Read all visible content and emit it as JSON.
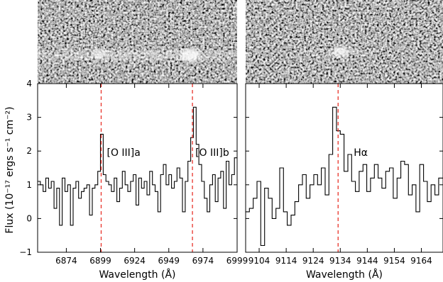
{
  "chart_data": [
    {
      "type": "line",
      "style": "step",
      "xlabel": "Wavelength (Å)",
      "ylabel": "Flux (10⁻¹⁷ ergs s⁻¹ cm⁻²)",
      "xlim": [
        6853,
        6999
      ],
      "ylim": [
        -1,
        4
      ],
      "xticks": [
        6874,
        6899,
        6924,
        6949,
        6974,
        6999
      ],
      "yticks": [
        -1,
        0,
        1,
        2,
        3,
        4
      ],
      "grid": false,
      "reference_lines": [
        {
          "x": 6899.5,
          "label": "[O III]a",
          "color": "#e8332a"
        },
        {
          "x": 6966.3,
          "label": "[O III]b",
          "color": "#e8332a"
        }
      ],
      "x": [
        6853,
        6855,
        6857,
        6859,
        6861,
        6863,
        6865,
        6867,
        6869,
        6871,
        6873,
        6875,
        6877,
        6879,
        6881,
        6883,
        6885,
        6887,
        6889,
        6891,
        6893,
        6895,
        6897,
        6899,
        6901,
        6903,
        6905,
        6907,
        6909,
        6911,
        6913,
        6915,
        6917,
        6919,
        6921,
        6923,
        6925,
        6927,
        6929,
        6931,
        6933,
        6935,
        6937,
        6939,
        6941,
        6943,
        6945,
        6947,
        6949,
        6951,
        6953,
        6955,
        6957,
        6959,
        6961,
        6963,
        6965,
        6967,
        6969,
        6971,
        6973,
        6975,
        6977,
        6979,
        6981,
        6983,
        6985,
        6987,
        6989,
        6991,
        6993,
        6995,
        6997
      ],
      "values": [
        1.1,
        1.0,
        0.8,
        1.2,
        0.9,
        1.1,
        0.3,
        0.9,
        -0.2,
        1.2,
        0.8,
        1.0,
        -0.2,
        0.9,
        1.1,
        0.6,
        0.8,
        0.9,
        1.0,
        0.1,
        0.9,
        1.0,
        1.4,
        2.5,
        1.3,
        1.1,
        1.0,
        0.8,
        1.2,
        0.5,
        0.9,
        1.4,
        1.0,
        0.8,
        1.1,
        1.3,
        0.4,
        1.2,
        0.9,
        1.1,
        0.7,
        1.4,
        1.0,
        0.8,
        0.2,
        1.3,
        1.6,
        1.0,
        1.3,
        0.9,
        1.1,
        1.5,
        1.2,
        0.2,
        1.1,
        1.7,
        2.4,
        3.3,
        2.2,
        1.6,
        1.1,
        0.6,
        0.2,
        1.0,
        1.3,
        0.5,
        1.2,
        1.4,
        0.3,
        1.7,
        1.0,
        1.3,
        1.8
      ]
    },
    {
      "type": "line",
      "style": "step",
      "xlabel": "Wavelength (Å)",
      "ylabel": "",
      "xlim": [
        9099,
        9172
      ],
      "ylim": [
        -1,
        4
      ],
      "xticks": [
        9104,
        9114,
        9124,
        9134,
        9144,
        9154,
        9164
      ],
      "yticks": [],
      "grid": false,
      "reference_lines": [
        {
          "x": 9133.2,
          "label": "Hα",
          "color": "#e8332a"
        }
      ],
      "x": [
        9099,
        9100.4,
        9101.8,
        9103.2,
        9104.6,
        9106,
        9107.4,
        9108.8,
        9110.2,
        9111.6,
        9113,
        9114.4,
        9115.8,
        9117.2,
        9118.6,
        9120,
        9121.4,
        9122.8,
        9124.2,
        9125.6,
        9127,
        9128.4,
        9129.8,
        9131.2,
        9132.6,
        9134,
        9135.4,
        9136.8,
        9138.2,
        9139.6,
        9141,
        9142.4,
        9143.8,
        9145.2,
        9146.6,
        9148,
        9149.4,
        9150.8,
        9152.2,
        9153.6,
        9155,
        9156.4,
        9157.8,
        9159.2,
        9160.6,
        9162,
        9163.4,
        9164.8,
        9166.2,
        9167.6,
        9169,
        9170.4
      ],
      "values": [
        0.2,
        0.3,
        0.6,
        1.1,
        -0.8,
        0.9,
        0.6,
        0.0,
        0.3,
        1.5,
        0.2,
        -0.2,
        0.1,
        0.5,
        1.0,
        1.3,
        0.6,
        1.0,
        1.3,
        1.0,
        1.5,
        0.7,
        1.9,
        3.3,
        2.6,
        2.5,
        1.4,
        1.9,
        1.1,
        0.8,
        1.4,
        1.6,
        0.8,
        1.2,
        1.6,
        1.2,
        0.9,
        1.4,
        1.5,
        0.6,
        1.2,
        1.7,
        1.6,
        0.7,
        1.0,
        0.2,
        1.6,
        1.1,
        0.5,
        1.0,
        0.7,
        1.2
      ]
    }
  ]
}
